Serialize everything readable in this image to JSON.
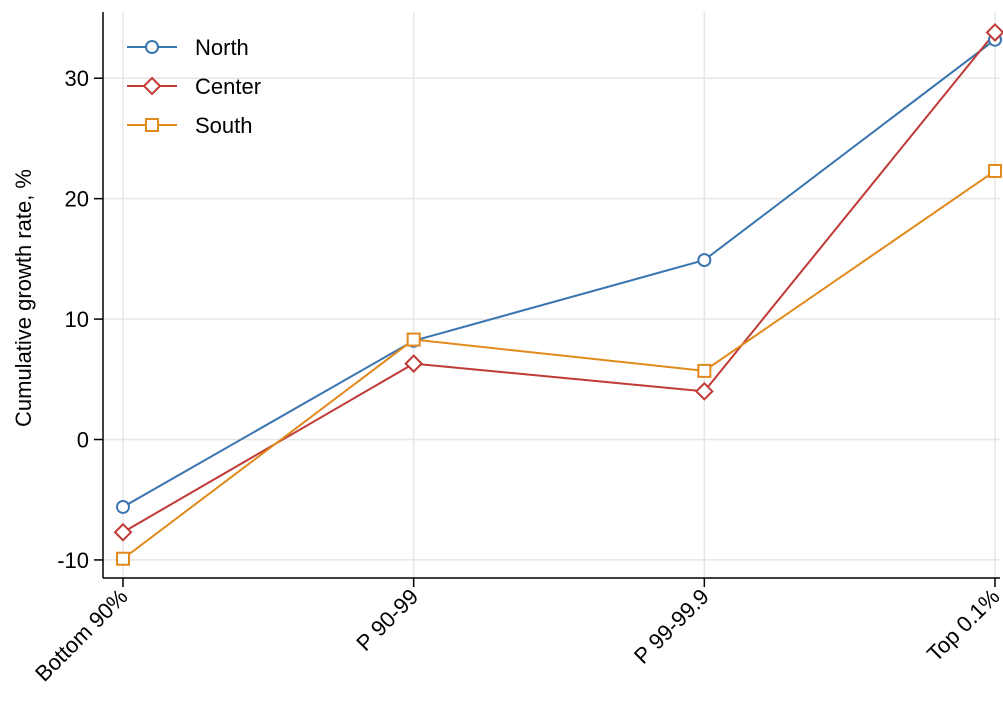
{
  "chart_data": {
    "type": "line",
    "title": "",
    "xlabel": "",
    "ylabel": "Cumulative growth rate, %",
    "categories": [
      "Bottom 90%",
      "P 90-99",
      "P 99-99.9",
      "Top 0.1%"
    ],
    "ylim": [
      -11.5,
      35.5
    ],
    "yticks": [
      -10,
      0,
      10,
      20,
      30
    ],
    "grid": true,
    "legend_position": "top-left",
    "series": [
      {
        "name": "North",
        "values": [
          -5.6,
          8.2,
          14.9,
          33.2
        ],
        "color": "#3a75b0",
        "marker": "circle"
      },
      {
        "name": "Center",
        "values": [
          -7.7,
          6.3,
          4.0,
          33.8
        ],
        "color": "#c03a36",
        "marker": "diamond"
      },
      {
        "name": "South",
        "values": [
          -9.9,
          8.3,
          5.7,
          22.3
        ],
        "color": "#e08a1b",
        "marker": "square"
      }
    ]
  }
}
